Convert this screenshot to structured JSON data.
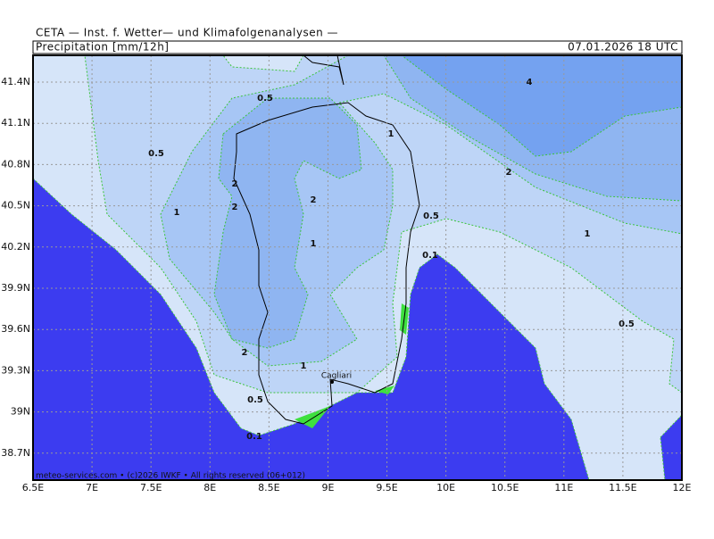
{
  "header": {
    "title": "CETA — Inst. f. Wetter— und Klimafolgenanalysen —",
    "parameter": "Precipitation [mm/12h]",
    "valid_time": "07.01.2026 18 UTC"
  },
  "footer": "meteo-services.com • (c)2026 IWKF • All rights reserved (06+012)",
  "x_axis": [
    "6.5E",
    "7E",
    "7.5E",
    "8E",
    "8.5E",
    "9E",
    "9.5E",
    "10E",
    "10.5E",
    "11E",
    "11.5E",
    "12E"
  ],
  "y_axis": [
    "41.4N",
    "41.1N",
    "40.8N",
    "40.5N",
    "40.2N",
    "39.9N",
    "39.6N",
    "39.3N",
    "39N",
    "38.7N"
  ],
  "contour_labels": [
    "0.5",
    "0.5",
    "1",
    "2",
    "2",
    "2",
    "1",
    "1",
    "0.5",
    "0.1",
    "2",
    "4",
    "1",
    "0.5",
    "2",
    "1",
    "0.5",
    "0.1"
  ],
  "city": "Cagliari"
}
